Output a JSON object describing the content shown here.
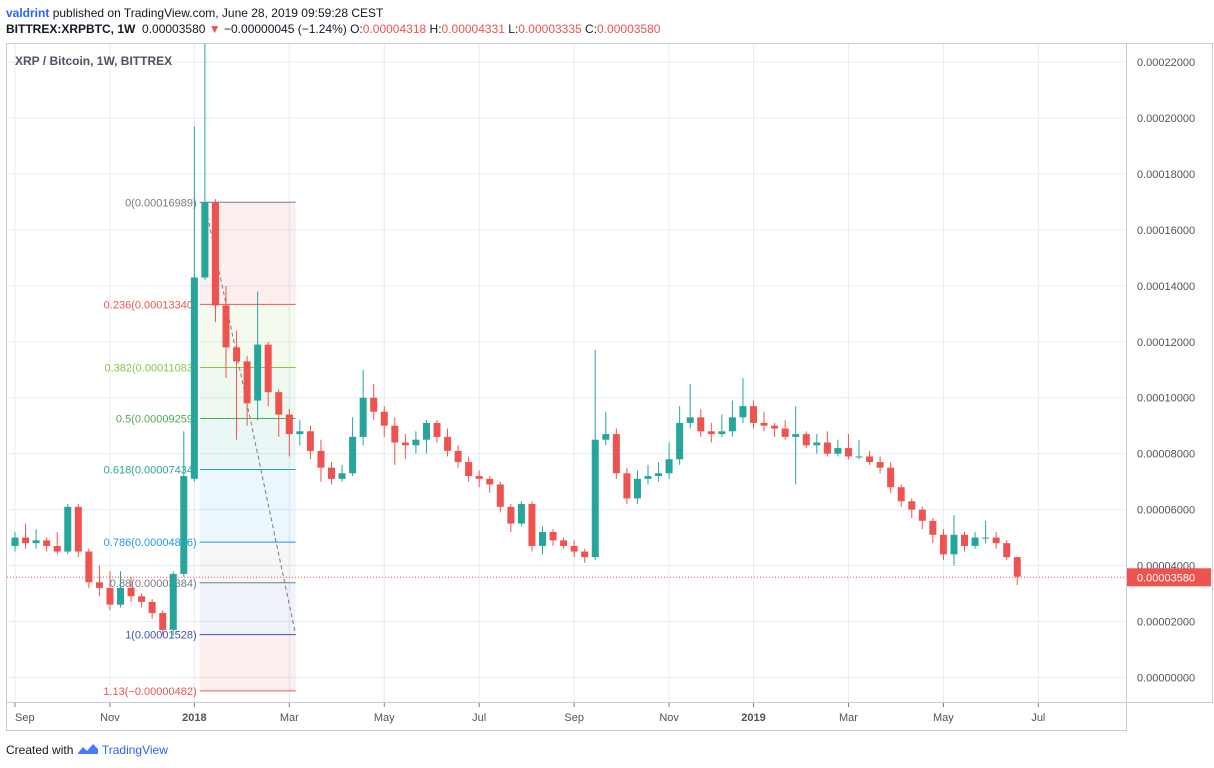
{
  "header": {
    "author": "valdrint",
    "published": "published on TradingView.com, June 28, 2019 09:59:28 CEST"
  },
  "ticker": {
    "symbol": "BITTREX:XRPBTC, 1W",
    "last": "0.00003580",
    "change_icon": "triangle-down-icon",
    "change": "−0.00000045 (−1.24%)",
    "open_label": "O:",
    "open": "0.00004318",
    "high_label": "H:",
    "high": "0.00004331",
    "low_label": "L:",
    "low": "0.00003335",
    "close_label": "C:",
    "close": "0.00003580"
  },
  "footer": {
    "created_with": "Created with",
    "brand": "TradingView",
    "logo_icon": "tradingview-logo-icon"
  },
  "colors": {
    "up": "#26a69a",
    "down": "#ef5350",
    "grid": "#e6ecf2",
    "text": "#131722",
    "axis_text": "#50535e"
  },
  "chart_data": {
    "type": "candlestick",
    "title": "XRP / Bitcoin, 1W, BITTREX",
    "ylim": [
      -8.8e-06,
      0.0002265
    ],
    "price_ticks": [
      "0.00000000",
      "0.00002000",
      "0.00004000",
      "0.00006000",
      "0.00008000",
      "0.00010000",
      "0.00012000",
      "0.00014000",
      "0.00016000",
      "0.00018000",
      "0.00020000",
      "0.00022000"
    ],
    "last_price": "0.00003580",
    "time_ticks": [
      {
        "label": "Sep",
        "bar": 0
      },
      {
        "label": "Nov",
        "bar": 9
      },
      {
        "label": "2018",
        "bar": 17,
        "bold": true
      },
      {
        "label": "Mar",
        "bar": 26
      },
      {
        "label": "May",
        "bar": 35
      },
      {
        "label": "Jul",
        "bar": 44
      },
      {
        "label": "Sep",
        "bar": 53
      },
      {
        "label": "Nov",
        "bar": 62
      },
      {
        "label": "2019",
        "bar": 70,
        "bold": true
      },
      {
        "label": "Mar",
        "bar": 79
      },
      {
        "label": "May",
        "bar": 88
      },
      {
        "label": "Jul",
        "bar": 97
      }
    ],
    "fib": {
      "start_bar": 17.5,
      "end_bar": 26.6,
      "high": 0.00016989,
      "low": 1.528e-05,
      "levels": [
        {
          "label": "0(0.00016989)",
          "ratio": 0,
          "value": 0.00016989,
          "color": "#787b86"
        },
        {
          "label": "0.236(0.00013340)",
          "ratio": 0.236,
          "value": 0.0001334,
          "color": "#ef5350"
        },
        {
          "label": "0.382(0.00011083)",
          "ratio": 0.382,
          "value": 0.00011083,
          "color": "#8bc34a"
        },
        {
          "label": "0.5(0.00009259)",
          "ratio": 0.5,
          "value": 9.259e-05,
          "color": "#4caf50"
        },
        {
          "label": "0.618(0.00007434)",
          "ratio": 0.618,
          "value": 7.434e-05,
          "color": "#26a69a"
        },
        {
          "label": "0.786(0.00004836)",
          "ratio": 0.786,
          "value": 4.836e-05,
          "color": "#2196f3"
        },
        {
          "label": "0.88(0.00003384)",
          "ratio": 0.88,
          "value": 3.384e-05,
          "color": "#787b86"
        },
        {
          "label": "1(0.00001528)",
          "ratio": 1,
          "value": 1.528e-05,
          "color": "#3f51b5"
        },
        {
          "label": "1.13(−0.00000482)",
          "ratio": 1.13,
          "value": -4.82e-06,
          "color": "#ef5350"
        }
      ]
    },
    "candles": [
      [
        4.7,
        5.0,
        5.2,
        4.5
      ],
      [
        5.0,
        4.8,
        5.5,
        4.6
      ],
      [
        4.8,
        4.9,
        5.3,
        4.6
      ],
      [
        4.9,
        4.7,
        5.0,
        4.5
      ],
      [
        4.7,
        4.5,
        5.2,
        4.4
      ],
      [
        4.5,
        6.1,
        6.2,
        4.4
      ],
      [
        6.1,
        4.5,
        6.2,
        4.3
      ],
      [
        4.5,
        3.4,
        4.6,
        3.2
      ],
      [
        3.4,
        3.2,
        4.0,
        2.9
      ],
      [
        3.2,
        2.6,
        3.8,
        2.4
      ],
      [
        2.6,
        3.2,
        3.8,
        2.5
      ],
      [
        3.2,
        2.9,
        3.6,
        2.7
      ],
      [
        2.9,
        2.7,
        3.0,
        2.5
      ],
      [
        2.7,
        2.3,
        2.8,
        2.1
      ],
      [
        2.3,
        1.7,
        2.4,
        1.5
      ],
      [
        1.7,
        3.7,
        3.8,
        1.5
      ],
      [
        3.7,
        7.2,
        8.8,
        3.6
      ],
      [
        7.1,
        14.3,
        19.7,
        7.0
      ],
      [
        14.3,
        17.0,
        23.0,
        14.2
      ],
      [
        17.0,
        13.3,
        17.1,
        12.7
      ],
      [
        13.3,
        11.8,
        14.0,
        10.7
      ],
      [
        11.8,
        11.3,
        12.4,
        8.5
      ],
      [
        11.3,
        9.8,
        11.5,
        9.0
      ],
      [
        9.9,
        11.9,
        13.8,
        9.2
      ],
      [
        11.9,
        10.2,
        12.0,
        9.7
      ],
      [
        10.2,
        9.4,
        10.3,
        8.6
      ],
      [
        9.4,
        8.7,
        9.6,
        7.9
      ],
      [
        8.7,
        8.8,
        9.2,
        8.3
      ],
      [
        8.8,
        8.1,
        9.0,
        7.8
      ],
      [
        8.1,
        7.5,
        8.5,
        7.0
      ],
      [
        7.5,
        7.1,
        7.7,
        6.9
      ],
      [
        7.1,
        7.3,
        7.6,
        7.0
      ],
      [
        7.3,
        8.6,
        9.3,
        7.2
      ],
      [
        8.6,
        10.0,
        11.0,
        8.3
      ],
      [
        10.0,
        9.5,
        10.5,
        9.2
      ],
      [
        9.5,
        9.0,
        9.7,
        8.6
      ],
      [
        9.0,
        8.4,
        9.3,
        7.6
      ],
      [
        8.4,
        8.3,
        8.7,
        7.8
      ],
      [
        8.3,
        8.5,
        8.8,
        8.0
      ],
      [
        8.5,
        9.1,
        9.2,
        8.0
      ],
      [
        9.1,
        8.6,
        9.2,
        8.4
      ],
      [
        8.6,
        8.1,
        8.9,
        7.9
      ],
      [
        8.1,
        7.7,
        8.3,
        7.5
      ],
      [
        7.7,
        7.2,
        7.9,
        7.0
      ],
      [
        7.2,
        7.1,
        7.4,
        6.8
      ],
      [
        7.1,
        6.9,
        7.2,
        6.6
      ],
      [
        6.9,
        6.1,
        7.0,
        5.9
      ],
      [
        6.1,
        5.5,
        6.2,
        5.2
      ],
      [
        5.5,
        6.2,
        6.3,
        5.4
      ],
      [
        6.2,
        4.7,
        6.3,
        4.5
      ],
      [
        4.7,
        5.2,
        5.4,
        4.4
      ],
      [
        5.2,
        4.9,
        5.3,
        4.7
      ],
      [
        4.9,
        4.7,
        5.0,
        4.6
      ],
      [
        4.7,
        4.5,
        4.9,
        4.3
      ],
      [
        4.5,
        4.3,
        4.6,
        4.1
      ],
      [
        4.3,
        8.5,
        11.7,
        4.2
      ],
      [
        8.5,
        8.7,
        9.5,
        8.3
      ],
      [
        8.7,
        7.3,
        8.9,
        7.1
      ],
      [
        7.3,
        6.4,
        7.5,
        6.2
      ],
      [
        6.4,
        7.1,
        7.4,
        6.2
      ],
      [
        7.1,
        7.2,
        7.6,
        6.9
      ],
      [
        7.2,
        7.3,
        7.7,
        7.0
      ],
      [
        7.3,
        7.8,
        8.4,
        7.1
      ],
      [
        7.8,
        9.1,
        9.7,
        7.6
      ],
      [
        9.1,
        9.3,
        10.5,
        8.9
      ],
      [
        9.3,
        8.8,
        9.6,
        8.6
      ],
      [
        8.8,
        8.7,
        9.1,
        8.4
      ],
      [
        8.7,
        8.8,
        9.4,
        8.6
      ],
      [
        8.8,
        9.3,
        9.9,
        8.6
      ],
      [
        9.3,
        9.7,
        10.7,
        9.1
      ],
      [
        9.7,
        9.1,
        9.9,
        8.9
      ],
      [
        9.1,
        9.0,
        9.5,
        8.8
      ],
      [
        9.0,
        8.9,
        9.1,
        8.6
      ],
      [
        8.9,
        8.6,
        9.2,
        8.5
      ],
      [
        8.6,
        8.7,
        9.7,
        6.9
      ],
      [
        8.7,
        8.3,
        8.8,
        8.2
      ],
      [
        8.3,
        8.4,
        8.7,
        8.0
      ],
      [
        8.4,
        8.0,
        8.8,
        7.9
      ],
      [
        8.0,
        8.2,
        8.5,
        7.9
      ],
      [
        8.2,
        7.9,
        8.7,
        7.8
      ],
      [
        7.9,
        7.9,
        8.5,
        7.8
      ],
      [
        7.9,
        7.7,
        8.1,
        7.6
      ],
      [
        7.7,
        7.5,
        7.9,
        7.3
      ],
      [
        7.5,
        6.8,
        7.7,
        6.6
      ],
      [
        6.8,
        6.3,
        6.9,
        6.1
      ],
      [
        6.3,
        6.0,
        6.4,
        5.7
      ],
      [
        6.0,
        5.6,
        6.1,
        5.3
      ],
      [
        5.6,
        5.1,
        5.7,
        4.8
      ],
      [
        5.1,
        4.4,
        5.3,
        4.2
      ],
      [
        4.4,
        5.1,
        5.8,
        4.0
      ],
      [
        5.1,
        4.7,
        5.2,
        4.5
      ],
      [
        4.7,
        5.0,
        5.2,
        4.6
      ],
      [
        5.0,
        5.0,
        5.6,
        4.8
      ],
      [
        5.0,
        4.8,
        5.2,
        4.6
      ],
      [
        4.8,
        4.3,
        4.9,
        4.2
      ],
      [
        4.3,
        3.6,
        4.3,
        3.3
      ]
    ],
    "candles_unit": "1e-5 BTC"
  }
}
